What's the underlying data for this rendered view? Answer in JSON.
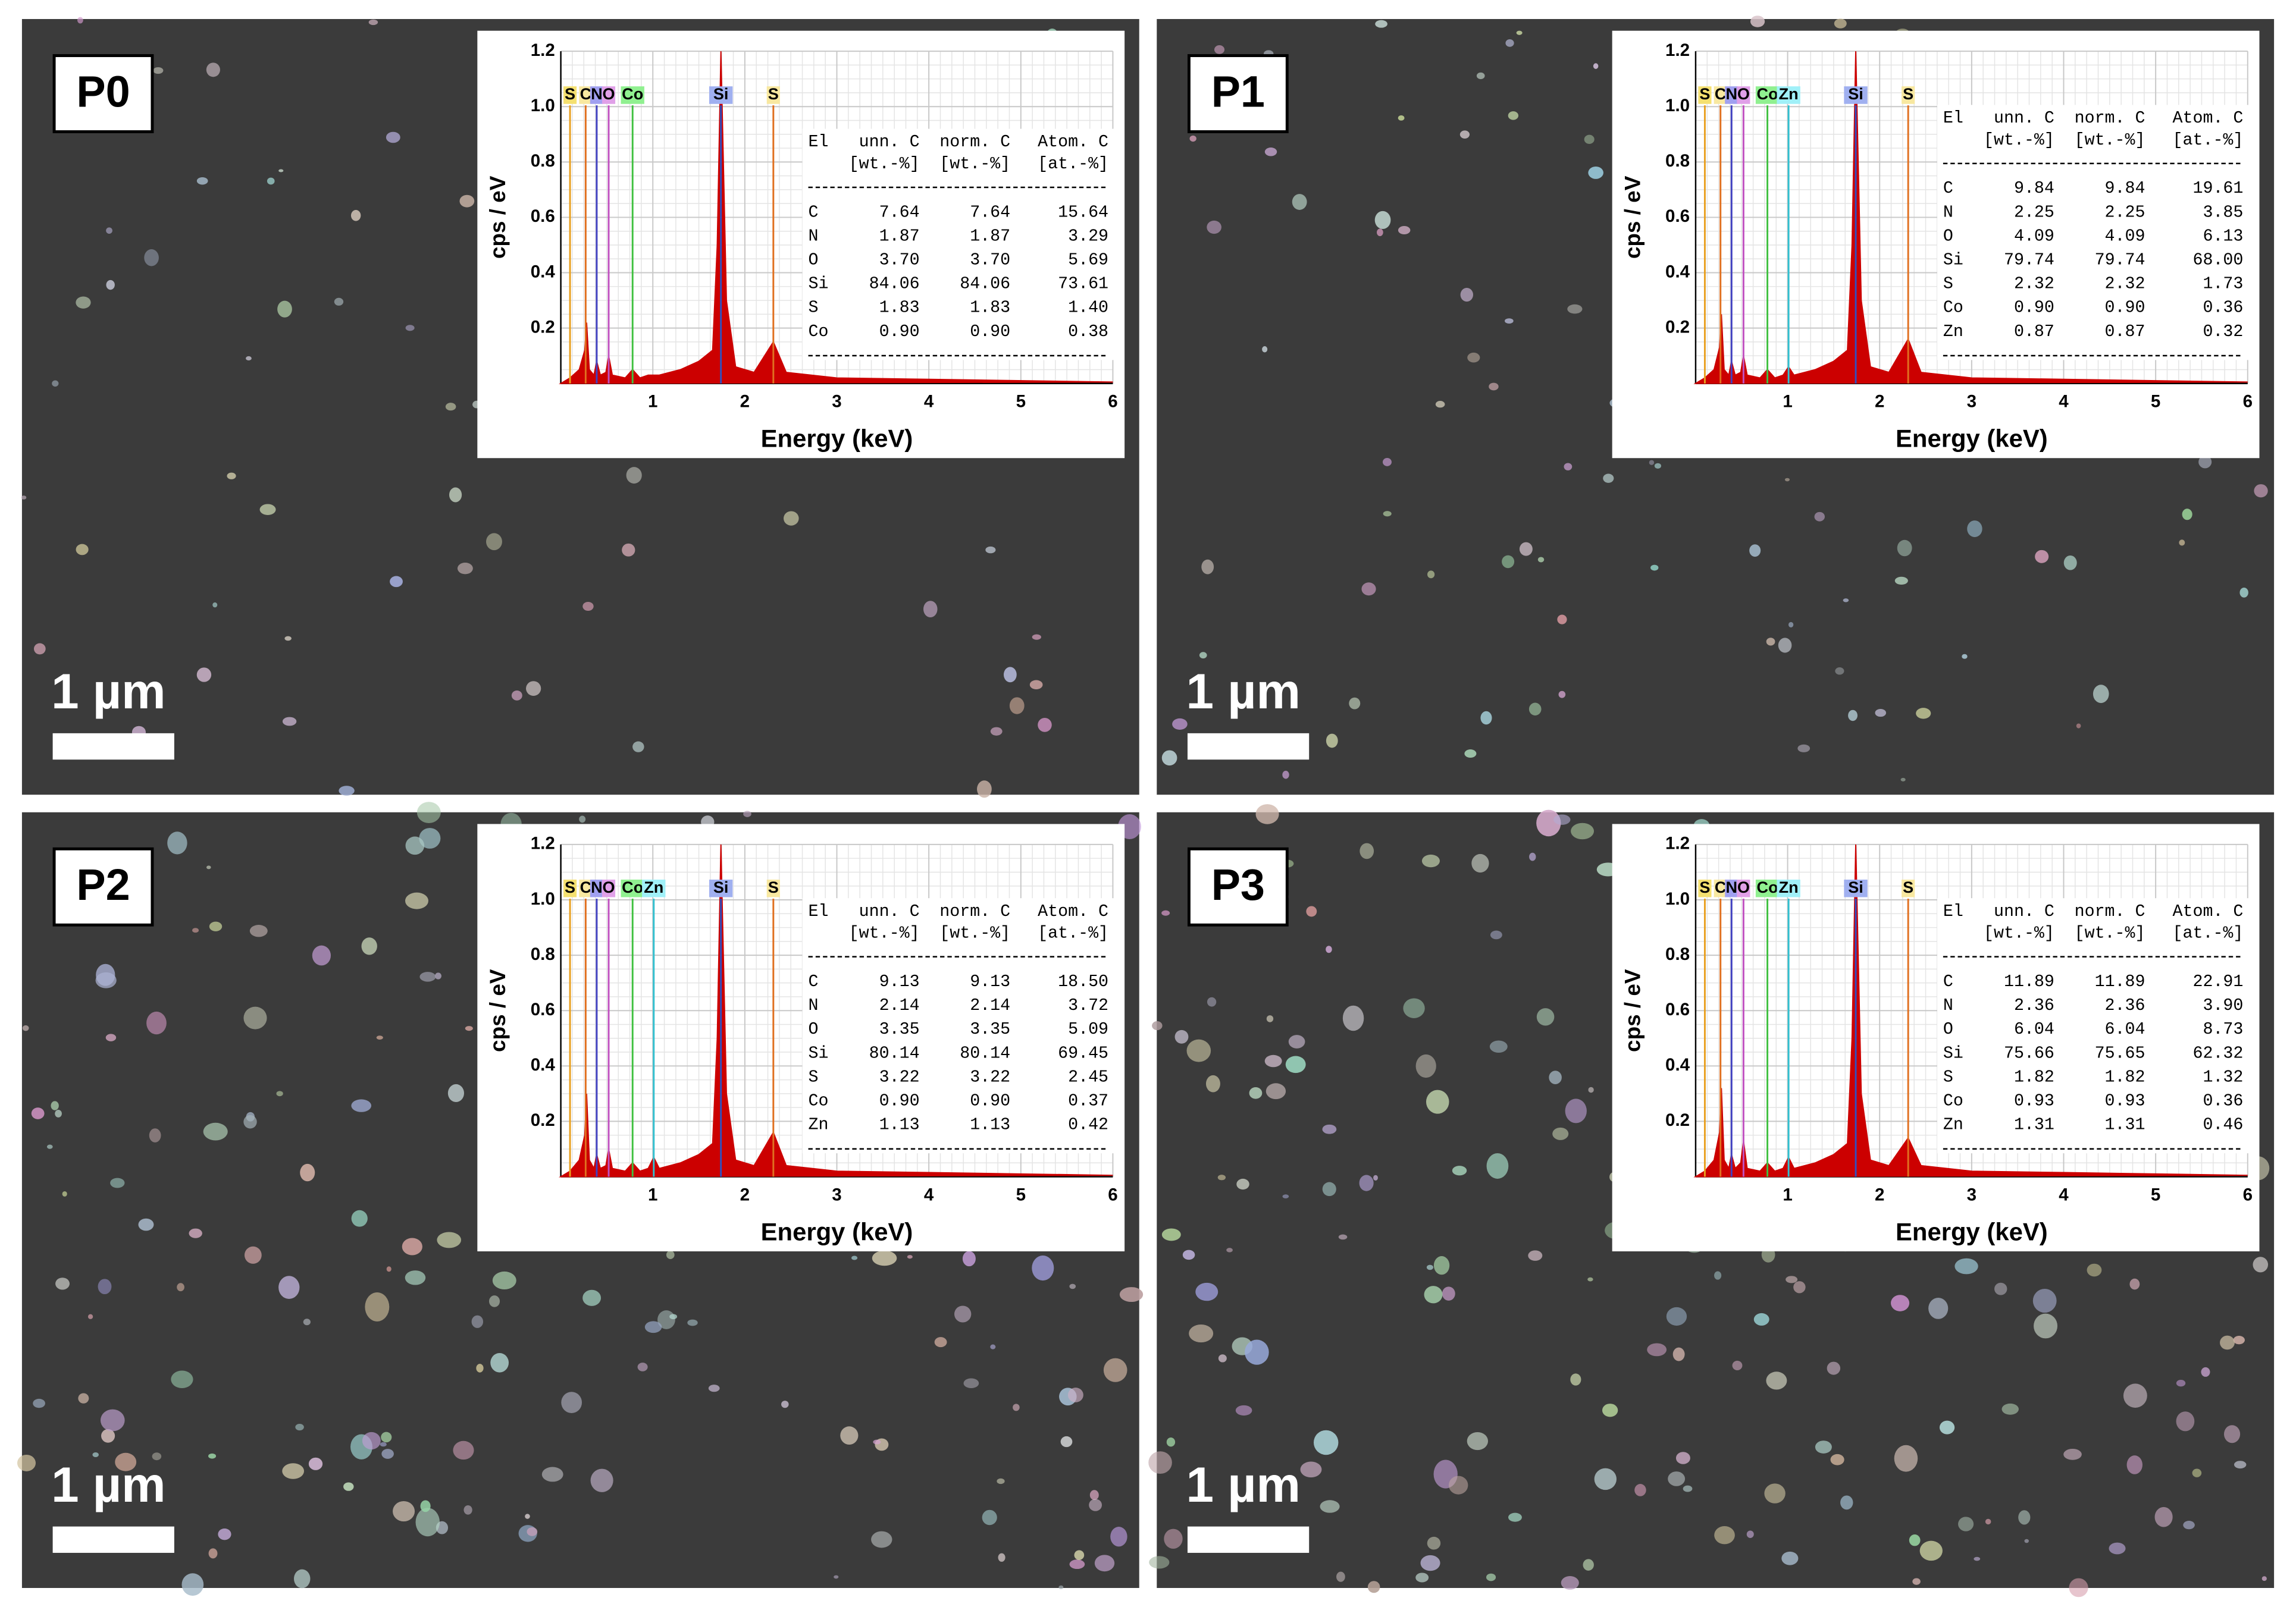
{
  "panels": [
    {
      "label": "P0",
      "scale_bar": "1 µm",
      "spectrum": {
        "y_label": "cps / eV",
        "x_label": "Energy  (keV)",
        "xlim": [
          0,
          6
        ],
        "ylim": [
          0,
          1.2
        ],
        "xticks": [
          1,
          2,
          3,
          4,
          5,
          6
        ],
        "yticks": [
          0.2,
          0.4,
          0.6,
          0.8,
          {
            "value": 1,
            "label": "1.0"
          },
          1.2
        ],
        "color": "#cc0000",
        "energy": [
          0,
          0.1,
          0.2,
          0.26,
          0.28,
          0.31,
          0.36,
          0.39,
          0.43,
          0.49,
          0.52,
          0.56,
          0.7,
          0.78,
          0.86,
          0.95,
          1.01,
          1.07,
          1.3,
          1.5,
          1.65,
          1.7,
          1.74,
          1.8,
          1.9,
          2.1,
          2.31,
          2.45,
          3,
          4,
          6
        ],
        "cps": [
          0,
          0.02,
          0.05,
          0.12,
          0.22,
          0.05,
          0.03,
          0.08,
          0.03,
          0.04,
          0.1,
          0.03,
          0.02,
          0.05,
          0.02,
          0.03,
          0.03,
          0.03,
          0.05,
          0.08,
          0.12,
          0.5,
          1.2,
          0.3,
          0.06,
          0.04,
          0.15,
          0.04,
          0.02,
          0.015,
          0.005
        ],
        "markers": [
          {
            "label": "S",
            "energy": 0.1,
            "color": "#e8a020",
            "bg": "#f4e070"
          },
          {
            "label": "C",
            "energy": 0.27,
            "color": "#e07020",
            "bg": "#f8e8a0"
          },
          {
            "label": "N",
            "energy": 0.39,
            "color": "#4040c0",
            "bg": "#a0a0f0"
          },
          {
            "label": "O",
            "energy": 0.52,
            "color": "#c050c0",
            "bg": "#e0a0e8"
          },
          {
            "label": "Co",
            "energy": 0.78,
            "color": "#40c040",
            "bg": "#90f090"
          },
          {
            "label": "Si",
            "energy": 1.74,
            "color": "#3050c0",
            "bg": "#a0b0f0"
          },
          {
            "label": "S",
            "energy": 2.31,
            "color": "#e07020",
            "bg": "#f8e8a0"
          }
        ]
      },
      "table": {
        "columns": [
          "El",
          "unn. C",
          "norm. C",
          "Atom. C"
        ],
        "units": [
          "[wt.-%]",
          "[wt.-%]",
          "[at.-%]"
        ],
        "rows": [
          [
            "C",
            "7.64",
            "7.64",
            "15.64"
          ],
          [
            "N",
            "1.87",
            "1.87",
            "3.29"
          ],
          [
            "O",
            "3.70",
            "3.70",
            "5.69"
          ],
          [
            "Si",
            "84.06",
            "84.06",
            "73.61"
          ],
          [
            "S",
            "1.83",
            "1.83",
            "1.40"
          ],
          [
            "Co",
            "0.90",
            "0.90",
            "0.38"
          ]
        ]
      }
    },
    {
      "label": "P1",
      "scale_bar": "1 µm",
      "spectrum": {
        "y_label": "cps / eV",
        "x_label": "Energy  (keV)",
        "xlim": [
          0,
          6
        ],
        "ylim": [
          0,
          1.2
        ],
        "xticks": [
          1,
          2,
          3,
          4,
          5,
          6
        ],
        "yticks": [
          0.2,
          0.4,
          0.6,
          0.8,
          {
            "value": 1,
            "label": "1.0"
          },
          1.2
        ],
        "color": "#cc0000",
        "energy": [
          0,
          0.1,
          0.2,
          0.26,
          0.28,
          0.31,
          0.36,
          0.39,
          0.43,
          0.49,
          0.52,
          0.56,
          0.7,
          0.78,
          0.86,
          0.95,
          1.01,
          1.07,
          1.3,
          1.5,
          1.65,
          1.7,
          1.74,
          1.8,
          1.9,
          2.1,
          2.31,
          2.45,
          3,
          4,
          6
        ],
        "cps": [
          0,
          0.02,
          0.05,
          0.13,
          0.25,
          0.05,
          0.03,
          0.08,
          0.03,
          0.04,
          0.1,
          0.03,
          0.02,
          0.05,
          0.02,
          0.03,
          0.06,
          0.03,
          0.05,
          0.08,
          0.12,
          0.5,
          1.2,
          0.3,
          0.06,
          0.04,
          0.16,
          0.04,
          0.02,
          0.015,
          0.005
        ],
        "markers": [
          {
            "label": "S",
            "energy": 0.1,
            "color": "#e8a020",
            "bg": "#f4e070"
          },
          {
            "label": "C",
            "energy": 0.27,
            "color": "#e07020",
            "bg": "#f8e8a0"
          },
          {
            "label": "N",
            "energy": 0.39,
            "color": "#4040c0",
            "bg": "#a0a0f0"
          },
          {
            "label": "O",
            "energy": 0.52,
            "color": "#c050c0",
            "bg": "#e0a0e8"
          },
          {
            "label": "Co",
            "energy": 0.78,
            "color": "#40c040",
            "bg": "#90f090"
          },
          {
            "label": "Zn",
            "energy": 1.01,
            "color": "#30c0d0",
            "bg": "#a0f0f8"
          },
          {
            "label": "Si",
            "energy": 1.74,
            "color": "#3050c0",
            "bg": "#a0b0f0"
          },
          {
            "label": "S",
            "energy": 2.31,
            "color": "#e07020",
            "bg": "#f8e8a0"
          }
        ]
      },
      "table": {
        "columns": [
          "El",
          "unn. C",
          "norm. C",
          "Atom. C"
        ],
        "units": [
          "[wt.-%]",
          "[wt.-%]",
          "[at.-%]"
        ],
        "rows": [
          [
            "C",
            "9.84",
            "9.84",
            "19.61"
          ],
          [
            "N",
            "2.25",
            "2.25",
            "3.85"
          ],
          [
            "O",
            "4.09",
            "4.09",
            "6.13"
          ],
          [
            "Si",
            "79.74",
            "79.74",
            "68.00"
          ],
          [
            "S",
            "2.32",
            "2.32",
            "1.73"
          ],
          [
            "Co",
            "0.90",
            "0.90",
            "0.36"
          ],
          [
            "Zn",
            "0.87",
            "0.87",
            "0.32"
          ]
        ]
      }
    },
    {
      "label": "P2",
      "scale_bar": "1 µm",
      "spectrum": {
        "y_label": "cps / eV",
        "x_label": "Energy  (keV)",
        "xlim": [
          0,
          6
        ],
        "ylim": [
          0,
          1.2
        ],
        "xticks": [
          1,
          2,
          3,
          4,
          5,
          6
        ],
        "yticks": [
          0.2,
          0.4,
          0.6,
          0.8,
          {
            "value": 1,
            "label": "1.0"
          },
          1.2
        ],
        "color": "#cc0000",
        "energy": [
          0,
          0.1,
          0.2,
          0.26,
          0.28,
          0.31,
          0.36,
          0.39,
          0.43,
          0.49,
          0.52,
          0.56,
          0.7,
          0.78,
          0.86,
          0.95,
          1.01,
          1.07,
          1.3,
          1.5,
          1.65,
          1.7,
          1.74,
          1.8,
          1.9,
          2.1,
          2.31,
          2.45,
          3,
          4,
          6
        ],
        "cps": [
          0,
          0.02,
          0.06,
          0.15,
          0.3,
          0.06,
          0.03,
          0.08,
          0.03,
          0.04,
          0.1,
          0.03,
          0.02,
          0.05,
          0.02,
          0.03,
          0.07,
          0.03,
          0.05,
          0.08,
          0.12,
          0.5,
          1.2,
          0.3,
          0.06,
          0.04,
          0.16,
          0.04,
          0.02,
          0.015,
          0.005
        ],
        "markers": [
          {
            "label": "S",
            "energy": 0.1,
            "color": "#e8a020",
            "bg": "#f4e070"
          },
          {
            "label": "C",
            "energy": 0.27,
            "color": "#e07020",
            "bg": "#f8e8a0"
          },
          {
            "label": "N",
            "energy": 0.39,
            "color": "#4040c0",
            "bg": "#a0a0f0"
          },
          {
            "label": "O",
            "energy": 0.52,
            "color": "#c050c0",
            "bg": "#e0a0e8"
          },
          {
            "label": "Co",
            "energy": 0.78,
            "color": "#40c040",
            "bg": "#90f090"
          },
          {
            "label": "Zn",
            "energy": 1.01,
            "color": "#30c0d0",
            "bg": "#a0f0f8"
          },
          {
            "label": "Si",
            "energy": 1.74,
            "color": "#3050c0",
            "bg": "#a0b0f0"
          },
          {
            "label": "S",
            "energy": 2.31,
            "color": "#e07020",
            "bg": "#f8e8a0"
          }
        ]
      },
      "table": {
        "columns": [
          "El",
          "unn. C",
          "norm. C",
          "Atom. C"
        ],
        "units": [
          "[wt.-%]",
          "[wt.-%]",
          "[at.-%]"
        ],
        "rows": [
          [
            "C",
            "9.13",
            "9.13",
            "18.50"
          ],
          [
            "N",
            "2.14",
            "2.14",
            "3.72"
          ],
          [
            "O",
            "3.35",
            "3.35",
            "5.09"
          ],
          [
            "Si",
            "80.14",
            "80.14",
            "69.45"
          ],
          [
            "S",
            "3.22",
            "3.22",
            "2.45"
          ],
          [
            "Co",
            "0.90",
            "0.90",
            "0.37"
          ],
          [
            "Zn",
            "1.13",
            "1.13",
            "0.42"
          ]
        ]
      }
    },
    {
      "label": "P3",
      "scale_bar": "1 µm",
      "spectrum": {
        "y_label": "cps / eV",
        "x_label": "Energy  (keV)",
        "xlim": [
          0,
          6
        ],
        "ylim": [
          0,
          1.2
        ],
        "xticks": [
          1,
          2,
          3,
          4,
          5,
          6
        ],
        "yticks": [
          0.2,
          0.4,
          0.6,
          0.8,
          {
            "value": 1,
            "label": "1.0"
          },
          1.2
        ],
        "color": "#cc0000",
        "energy": [
          0,
          0.1,
          0.2,
          0.26,
          0.28,
          0.31,
          0.36,
          0.39,
          0.43,
          0.49,
          0.52,
          0.56,
          0.7,
          0.78,
          0.86,
          0.95,
          1.01,
          1.07,
          1.3,
          1.5,
          1.65,
          1.7,
          1.74,
          1.8,
          1.9,
          2.1,
          2.31,
          2.45,
          3,
          4,
          6
        ],
        "cps": [
          0,
          0.02,
          0.06,
          0.16,
          0.32,
          0.06,
          0.03,
          0.08,
          0.03,
          0.05,
          0.13,
          0.03,
          0.02,
          0.05,
          0.02,
          0.03,
          0.07,
          0.03,
          0.05,
          0.08,
          0.12,
          0.5,
          1.2,
          0.3,
          0.06,
          0.04,
          0.14,
          0.04,
          0.02,
          0.015,
          0.005
        ],
        "markers": [
          {
            "label": "S",
            "energy": 0.1,
            "color": "#e8a020",
            "bg": "#f4e070"
          },
          {
            "label": "C",
            "energy": 0.27,
            "color": "#e07020",
            "bg": "#f8e8a0"
          },
          {
            "label": "N",
            "energy": 0.39,
            "color": "#4040c0",
            "bg": "#a0a0f0"
          },
          {
            "label": "O",
            "energy": 0.52,
            "color": "#c050c0",
            "bg": "#e0a0e8"
          },
          {
            "label": "Co",
            "energy": 0.78,
            "color": "#40c040",
            "bg": "#90f090"
          },
          {
            "label": "Zn",
            "energy": 1.01,
            "color": "#30c0d0",
            "bg": "#a0f0f8"
          },
          {
            "label": "Si",
            "energy": 1.74,
            "color": "#3050c0",
            "bg": "#a0b0f0"
          },
          {
            "label": "S",
            "energy": 2.31,
            "color": "#e07020",
            "bg": "#f8e8a0"
          }
        ]
      },
      "table": {
        "columns": [
          "El",
          "unn. C",
          "norm. C",
          "Atom. C"
        ],
        "units": [
          "[wt.-%]",
          "[wt.-%]",
          "[at.-%]"
        ],
        "rows": [
          [
            "C",
            "11.89",
            "11.89",
            "22.91"
          ],
          [
            "N",
            "2.36",
            "2.36",
            "3.90"
          ],
          [
            "O",
            "6.04",
            "6.04",
            "8.73"
          ],
          [
            "Si",
            "75.66",
            "75.65",
            "62.32"
          ],
          [
            "S",
            "1.82",
            "1.82",
            "1.32"
          ],
          [
            "Co",
            "0.93",
            "0.93",
            "0.36"
          ],
          [
            "Zn",
            "1.31",
            "1.31",
            "0.46"
          ]
        ]
      }
    }
  ]
}
